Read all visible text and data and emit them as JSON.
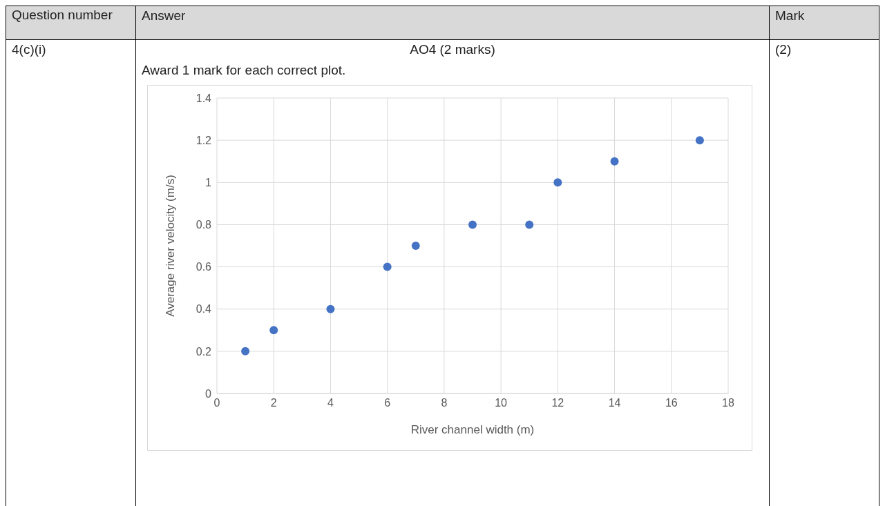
{
  "chart_data": {
    "type": "scatter",
    "xlabel": "River channel width (m)",
    "ylabel": "Average river velocity (m/s)",
    "x": [
      1,
      2,
      4,
      6,
      7,
      9,
      11,
      12,
      14,
      17
    ],
    "values": [
      0.2,
      0.3,
      0.4,
      0.6,
      0.7,
      0.8,
      0.8,
      1.0,
      1.1,
      1.2
    ],
    "color": "#4472c4",
    "marker": "circle",
    "grid": true,
    "xlim": [
      0,
      18
    ],
    "xticks": [
      0,
      2,
      4,
      6,
      8,
      10,
      12,
      14,
      16,
      18
    ],
    "ylim": [
      0,
      1.4
    ],
    "yticks": [
      0,
      0.2,
      0.4,
      0.6,
      0.8,
      1,
      1.2,
      1.4
    ],
    "annotations": [
      "Question number",
      "Answer",
      "Mark",
      "4(c)(i)",
      "AO4 (2 marks)",
      "(2)",
      "Award 1 mark for each correct plot."
    ]
  }
}
